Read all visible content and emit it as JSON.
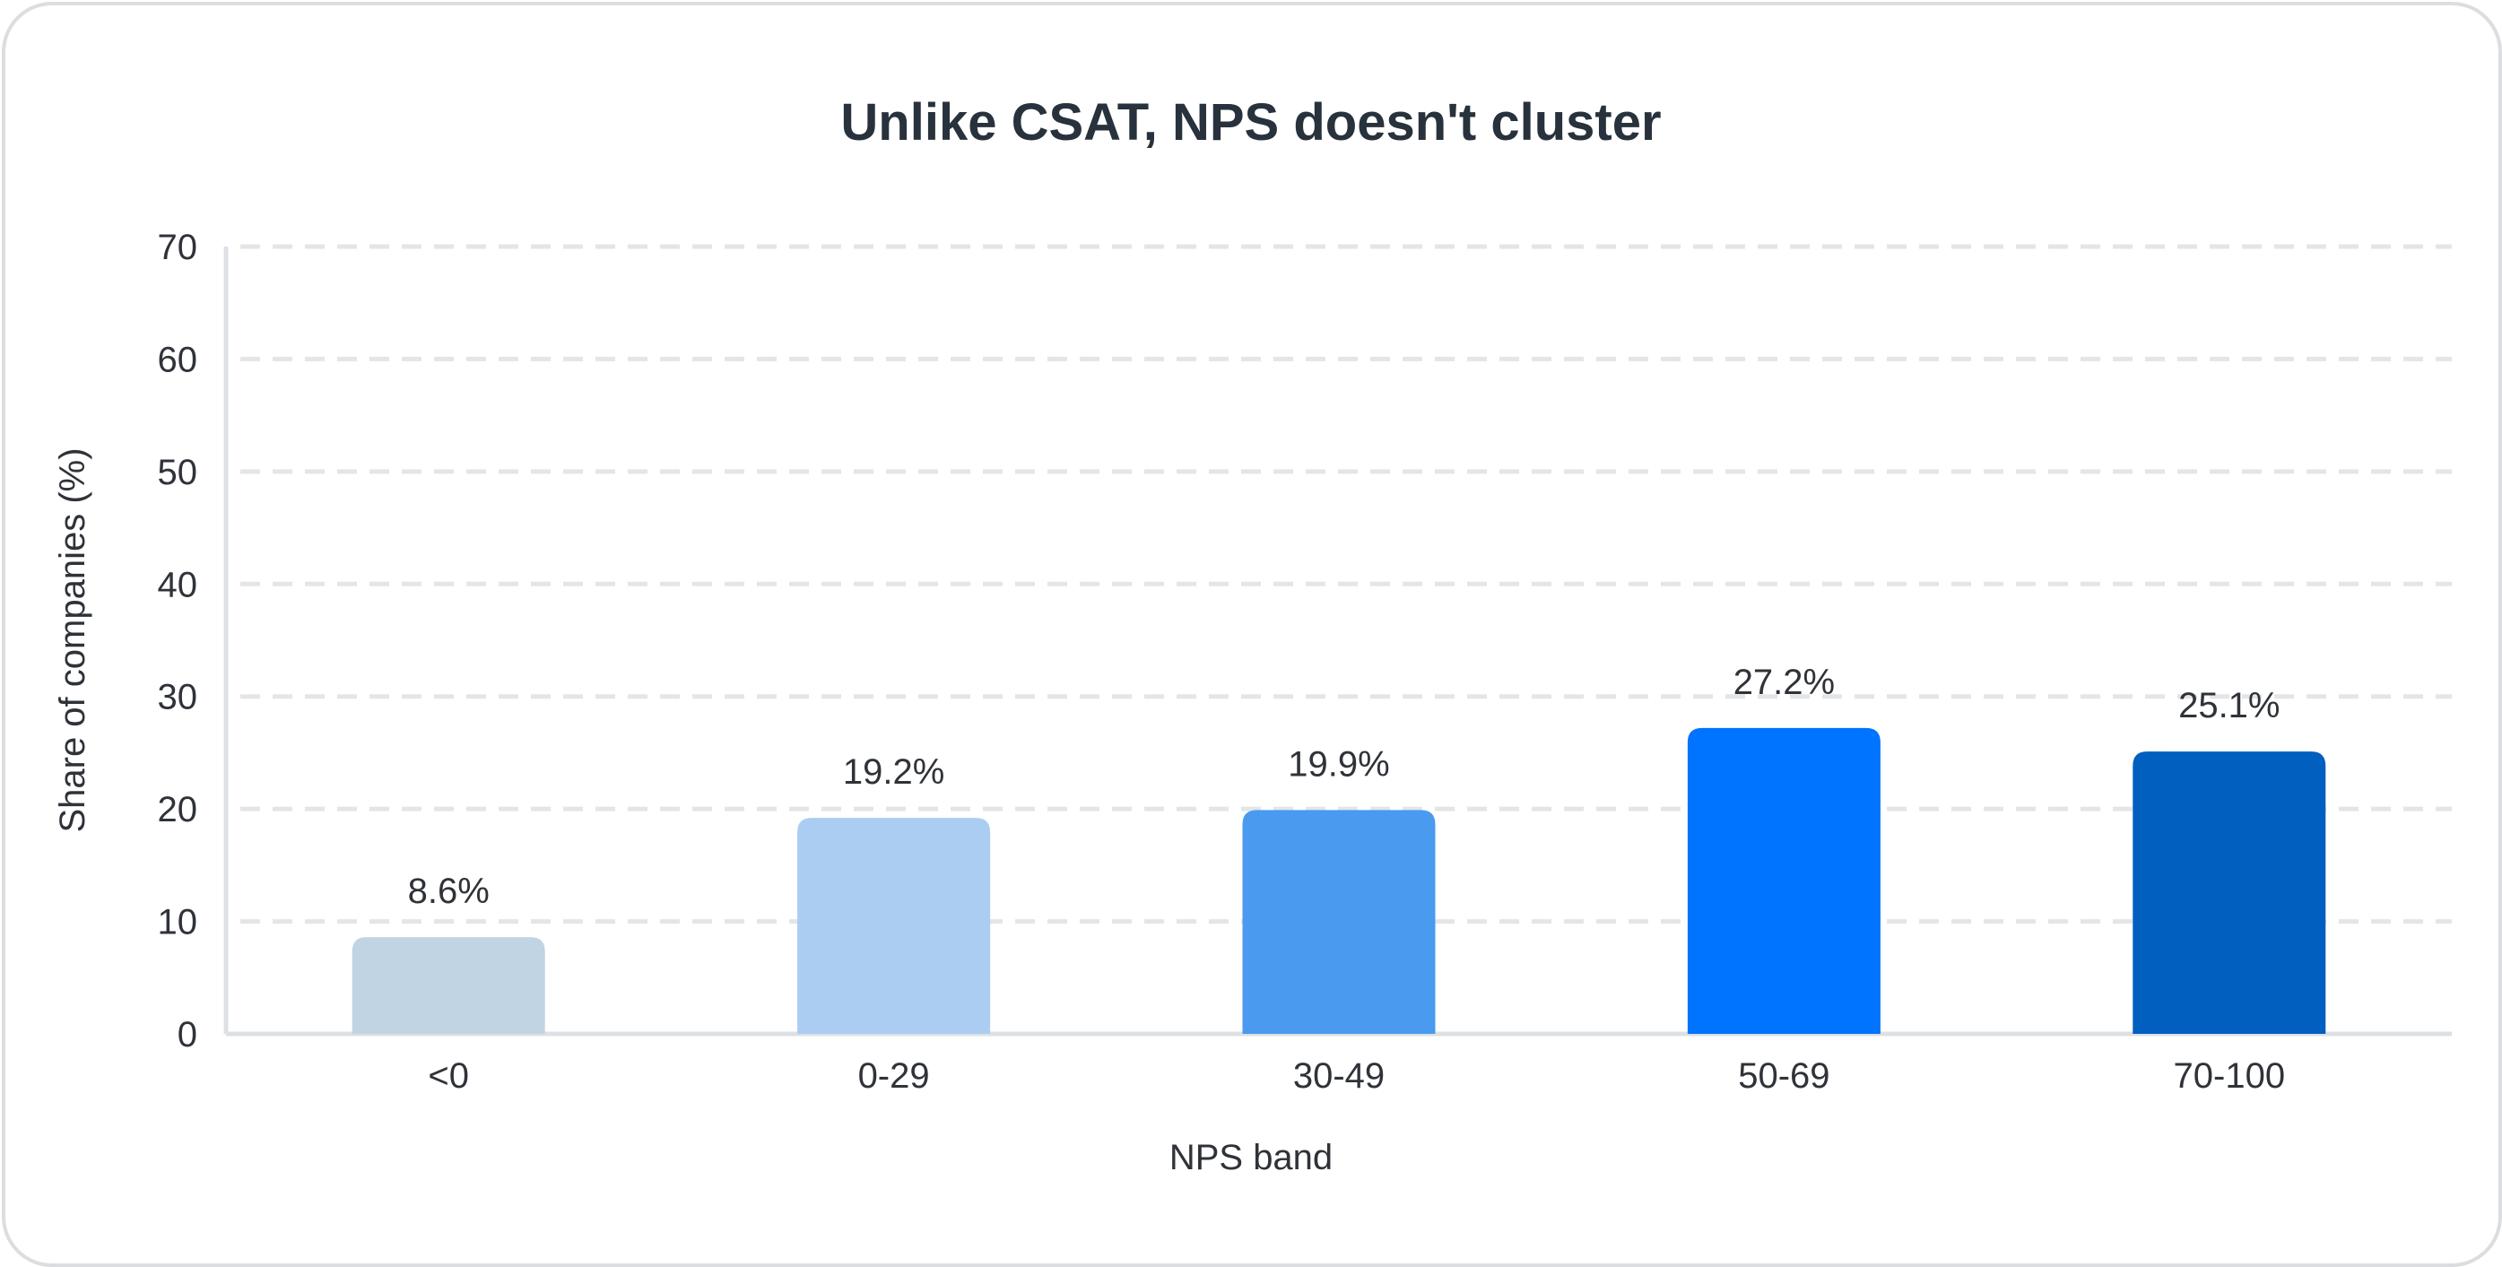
{
  "chart_data": {
    "type": "bar",
    "title": "Unlike CSAT, NPS doesn't cluster",
    "xlabel": "NPS band",
    "ylabel": "Share of companies (%)",
    "categories": [
      "<0",
      "0-29",
      "30-49",
      "50-69",
      "70-100"
    ],
    "values": [
      8.6,
      19.2,
      19.9,
      27.2,
      25.1
    ],
    "data_labels": [
      "8.6%",
      "19.2%",
      "19.9%",
      "27.2%",
      "25.1%"
    ],
    "ylim": [
      0,
      70
    ],
    "yticks": [
      0,
      10,
      20,
      30,
      40,
      50,
      60,
      70
    ],
    "grid": true,
    "bar_colors": [
      "#c1d4e4",
      "#abcdf2",
      "#4a9af0",
      "#0073ff",
      "#005fbf"
    ],
    "colors": {
      "title": "#28323c",
      "text": "#2f3339",
      "grid": "#e4e5e7",
      "axis": "#dde0e4",
      "card_border": "#dcdde0"
    }
  }
}
